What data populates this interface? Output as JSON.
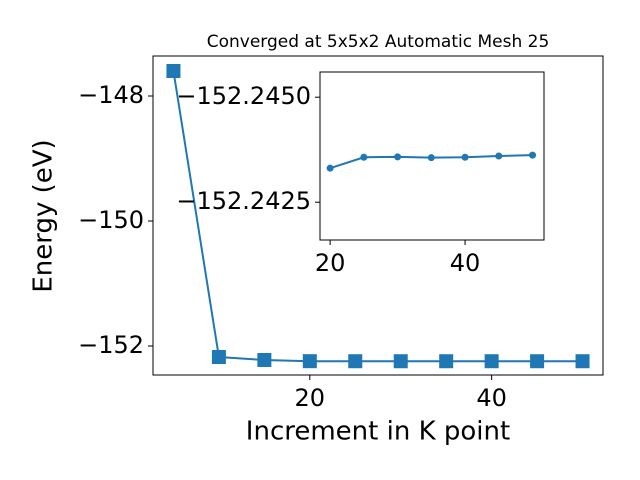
{
  "chart_data": [
    {
      "type": "line",
      "title": "Converged at 5x5x2 Automatic Mesh 25",
      "x_label": "Increment in K point",
      "y_label": "Energy (eV)",
      "x": [
        5,
        10,
        15,
        20,
        25,
        30,
        35,
        40,
        45,
        50
      ],
      "series": [
        {
          "color": "#1f77b4",
          "marker": "square",
          "values": [
            -147.6,
            -152.176,
            -152.224,
            -152.243,
            -152.2436,
            -152.2436,
            -152.2436,
            -152.2436,
            -152.2436,
            -152.2436
          ]
        }
      ],
      "xlim": [
        2.75,
        52.25
      ],
      "ylim": [
        -152.464,
        -147.36
      ],
      "xticks": [
        20,
        40
      ],
      "yticks": [
        {
          "value": -148,
          "label": "−148"
        },
        {
          "value": -150,
          "label": "−150"
        },
        {
          "value": -152,
          "label": "−152"
        }
      ]
    },
    {
      "type": "line",
      "x": [
        20,
        25,
        30,
        35,
        40,
        45,
        50
      ],
      "series": [
        {
          "color": "#1f77b4",
          "marker": "circle",
          "values": [
            -152.24331,
            -152.24357,
            -152.24358,
            -152.24356,
            -152.24357,
            -152.2436,
            -152.24362
          ]
        }
      ],
      "xlim": [
        18.5,
        51.7
      ],
      "ylim": [
        -152.2416,
        -152.2456
      ],
      "xticks": [
        20,
        40
      ],
      "yticks": [
        {
          "value": -152.245,
          "label": "−152.2450"
        },
        {
          "value": -152.2425,
          "label": "−152.2425"
        }
      ]
    }
  ]
}
